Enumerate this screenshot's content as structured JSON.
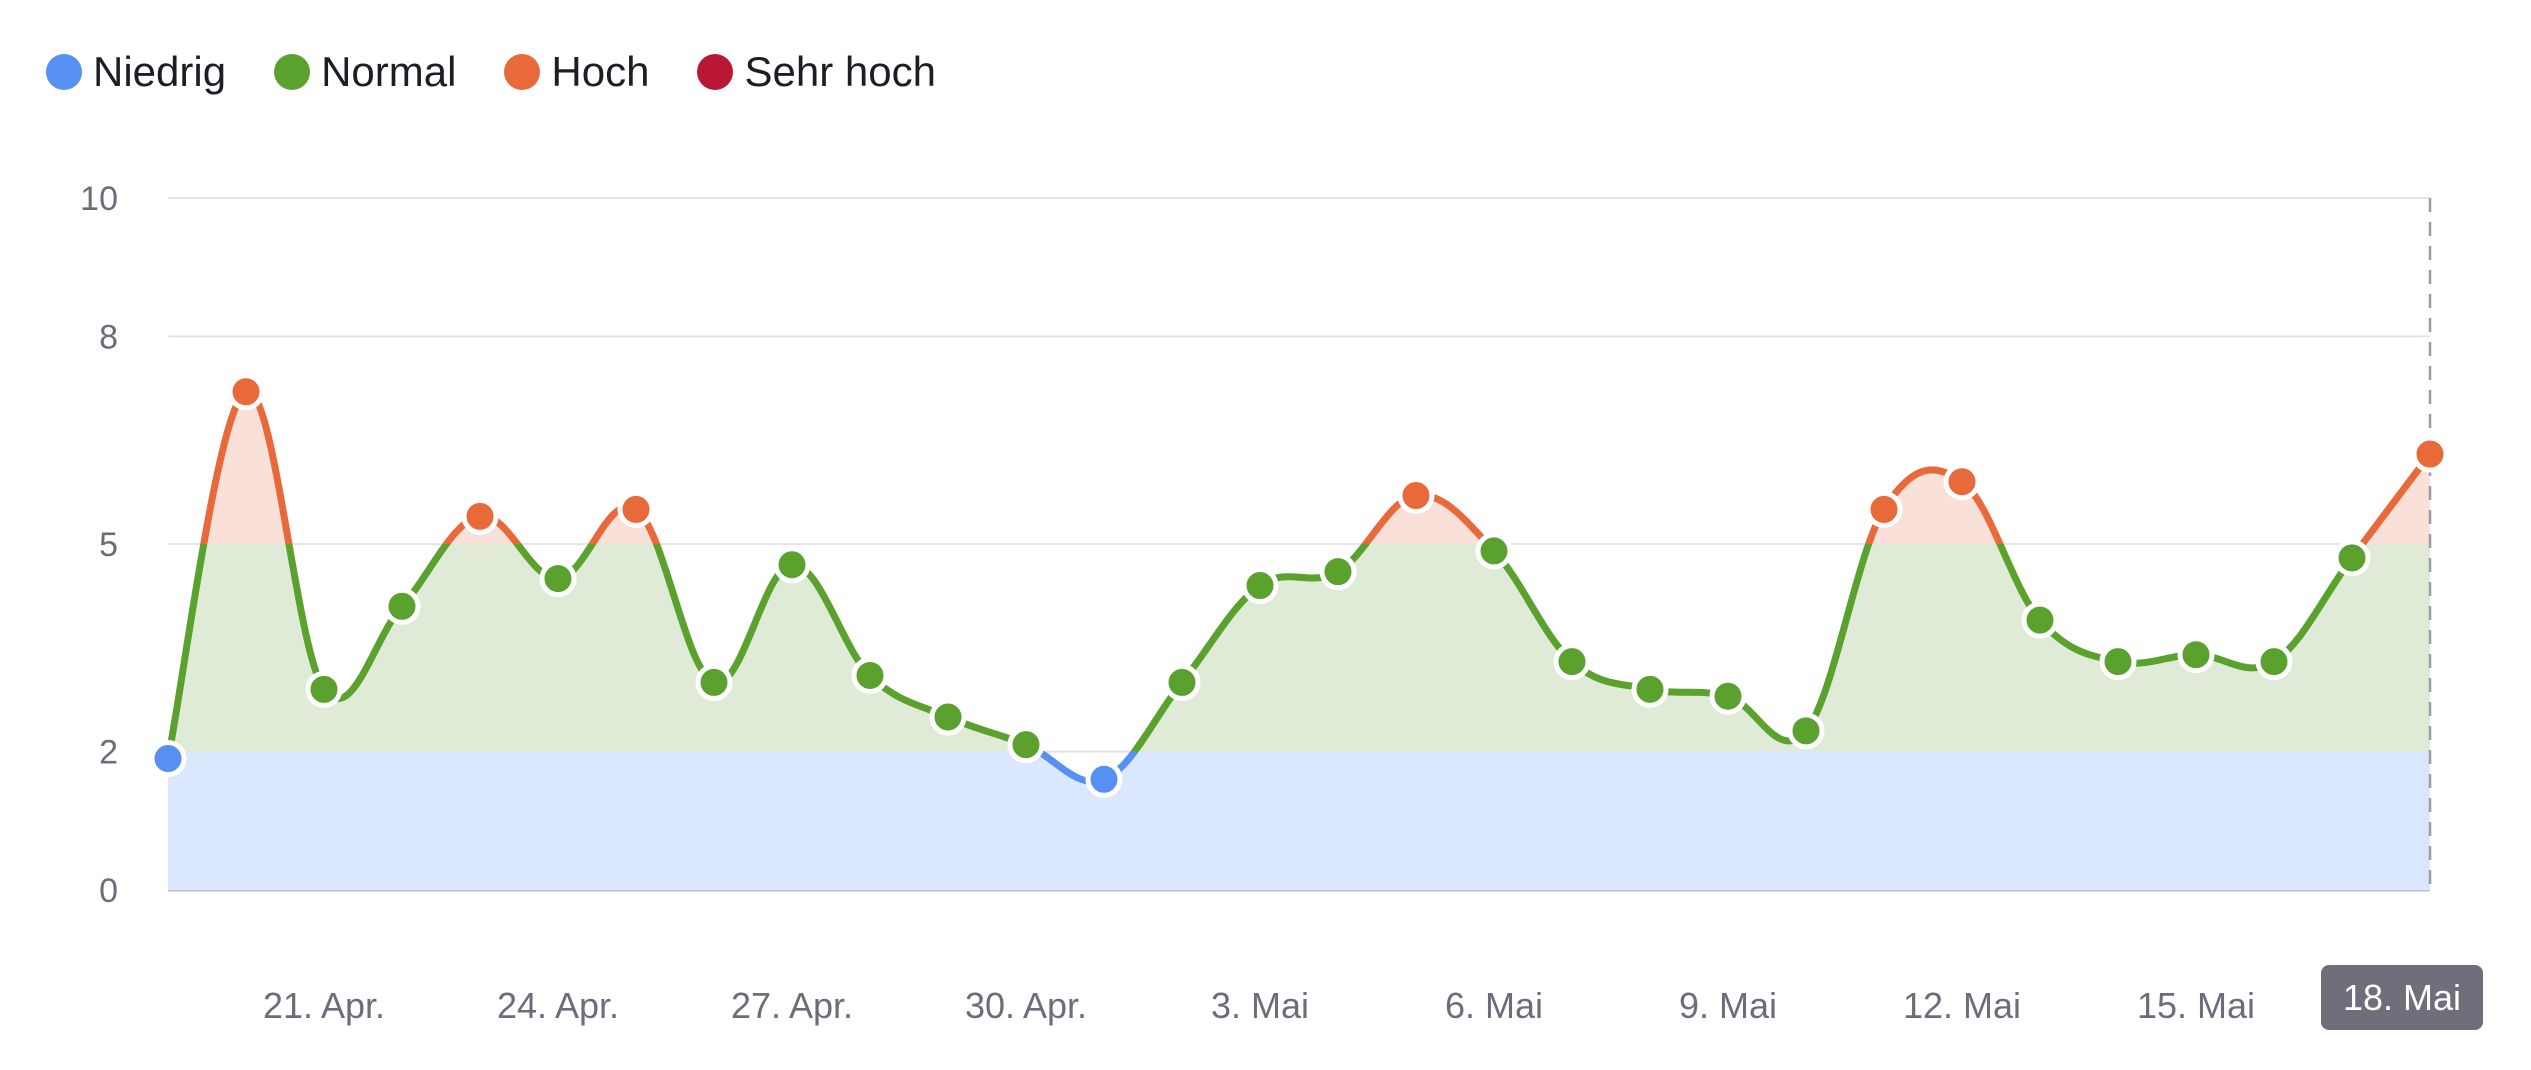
{
  "legend": [
    {
      "label": "Niedrig",
      "color": "#5590f2"
    },
    {
      "label": "Normal",
      "color": "#5aa12e"
    },
    {
      "label": "Hoch",
      "color": "#e8693a"
    },
    {
      "label": "Sehr hoch",
      "color": "#b91733"
    }
  ],
  "highlight_label": "18. Mai",
  "chart_data": {
    "type": "area",
    "title": "",
    "xlabel": "",
    "ylabel": "",
    "ylim": [
      0,
      10
    ],
    "y_ticks": [
      0,
      2,
      5,
      8,
      10
    ],
    "grid": true,
    "legend_position": "top-left",
    "x": [
      "19. Apr.",
      "20. Apr.",
      "21. Apr.",
      "22. Apr.",
      "23. Apr.",
      "24. Apr.",
      "25. Apr.",
      "26. Apr.",
      "27. Apr.",
      "28. Apr.",
      "29. Apr.",
      "30. Apr.",
      "1. Mai",
      "2. Mai",
      "3. Mai",
      "4. Mai",
      "5. Mai",
      "6. Mai",
      "7. Mai",
      "8. Mai",
      "9. Mai",
      "10. Mai",
      "11. Mai",
      "12. Mai",
      "13. Mai",
      "14. Mai",
      "15. Mai",
      "16. Mai",
      "17. Mai",
      "18. Mai"
    ],
    "x_tick_labels": [
      {
        "index": 2,
        "label": "21. Apr."
      },
      {
        "index": 5,
        "label": "24. Apr."
      },
      {
        "index": 8,
        "label": "27. Apr."
      },
      {
        "index": 11,
        "label": "30. Apr."
      },
      {
        "index": 14,
        "label": "3. Mai"
      },
      {
        "index": 17,
        "label": "6. Mai"
      },
      {
        "index": 20,
        "label": "9. Mai"
      },
      {
        "index": 23,
        "label": "12. Mai"
      },
      {
        "index": 26,
        "label": "15. Mai"
      },
      {
        "index": 29,
        "label": "18. Mai"
      }
    ],
    "values": [
      1.9,
      7.2,
      2.9,
      4.1,
      5.4,
      4.5,
      5.5,
      3.0,
      4.7,
      3.1,
      2.5,
      2.1,
      1.6,
      3.0,
      4.4,
      4.6,
      5.7,
      4.9,
      3.3,
      2.9,
      2.8,
      2.3,
      5.5,
      5.9,
      3.9,
      3.3,
      3.4,
      3.3,
      4.8,
      6.3
    ],
    "zones": [
      {
        "name": "Niedrig",
        "from": 0,
        "to": 2,
        "line_color": "#5590f2",
        "fill_color": "#dbe7fc"
      },
      {
        "name": "Normal",
        "from": 2,
        "to": 5,
        "line_color": "#5aa12e",
        "fill_color": "#dfebd6"
      },
      {
        "name": "Hoch",
        "from": 5,
        "to": 8,
        "line_color": "#e8693a",
        "fill_color": "#f9e0d8"
      },
      {
        "name": "Sehr hoch",
        "from": 8,
        "to": 10,
        "line_color": "#b91733",
        "fill_color": "#f3d6db"
      }
    ]
  }
}
